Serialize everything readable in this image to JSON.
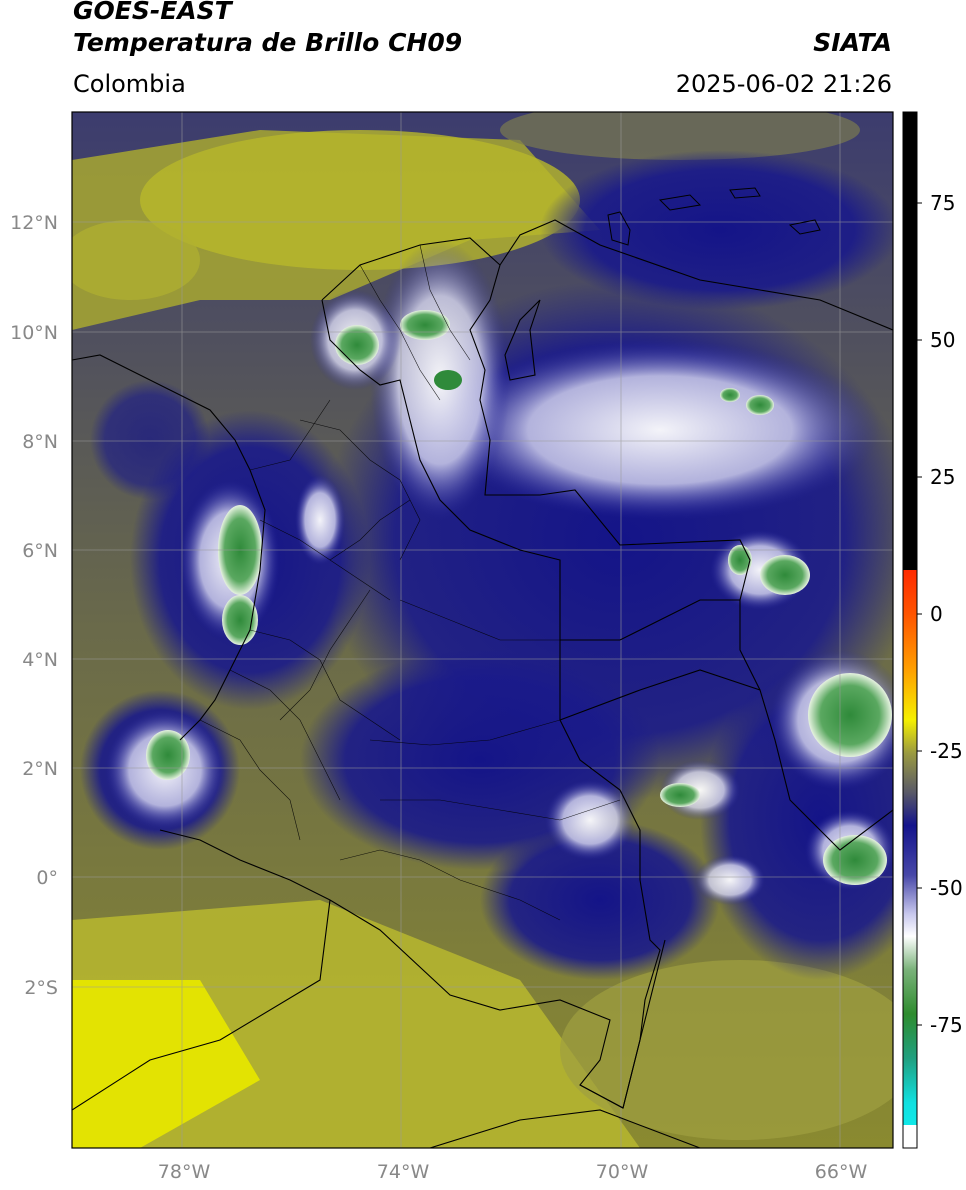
{
  "header": {
    "satellite": "GOES-EAST",
    "product": "Temperatura de Brillo CH09",
    "region": "Colombia",
    "agency": "SIATA",
    "datetime": "2025-06-02 21:26"
  },
  "map": {
    "lat_labels": [
      "12°N",
      "10°N",
      "8°N",
      "6°N",
      "4°N",
      "2°N",
      "0°",
      "2°S"
    ],
    "lon_labels": [
      "78°W",
      "74°W",
      "70°W",
      "66°W"
    ]
  },
  "colorbar": {
    "ticks": [
      "75",
      "50",
      "25",
      "0",
      "-25",
      "-50",
      "-75"
    ],
    "colors": {
      "warm_black": "#000000",
      "red": "#ff2a00",
      "orange": "#ff9a00",
      "yellow": "#f5f000",
      "olive": "#6b6b3a",
      "gray": "#5a5a66",
      "navy": "#14148c",
      "lavender": "#c8c8ee",
      "white": "#ffffff",
      "green": "#2e8c2e",
      "teal": "#20b090",
      "cyan": "#10e0e0"
    }
  }
}
